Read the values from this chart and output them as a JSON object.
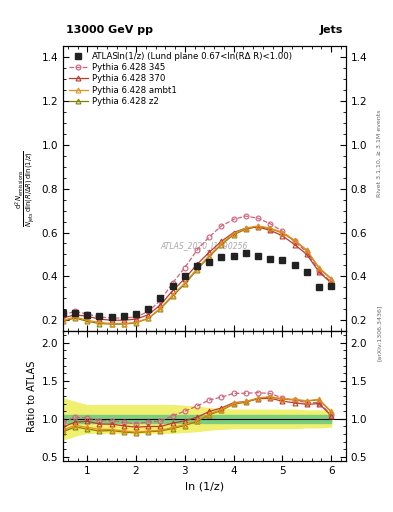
{
  "title_top": "13000 GeV pp",
  "title_right": "Jets",
  "annotation": "ln(1/z) (Lund plane 0.67<ln(RΔ R)<1.00)",
  "watermark": "ATLAS_2020_I1790256",
  "right_label": "Rivet 3.1.10, ≥ 3.1M events",
  "arxiv_label": "[arXiv:1306.3436]",
  "xlabel": "ln (1/z)",
  "ylabel_line1": "d² N",
  "ylabel": "Ratio to ATLAS",
  "x_data": [
    0.5,
    0.75,
    1.0,
    1.25,
    1.5,
    1.75,
    2.0,
    2.25,
    2.5,
    2.75,
    3.0,
    3.25,
    3.5,
    3.75,
    4.0,
    4.25,
    4.5,
    4.75,
    5.0,
    5.25,
    5.5,
    5.75,
    6.0
  ],
  "atlas_y": [
    0.235,
    0.235,
    0.225,
    0.22,
    0.215,
    0.22,
    0.23,
    0.25,
    0.3,
    0.355,
    0.4,
    0.445,
    0.465,
    0.49,
    0.495,
    0.505,
    0.495,
    0.48,
    0.475,
    0.45,
    0.42,
    0.35,
    0.355
  ],
  "p345_y": [
    0.225,
    0.24,
    0.228,
    0.215,
    0.21,
    0.21,
    0.215,
    0.24,
    0.29,
    0.37,
    0.44,
    0.52,
    0.58,
    0.63,
    0.66,
    0.675,
    0.665,
    0.64,
    0.605,
    0.56,
    0.51,
    0.425,
    0.375
  ],
  "p370_y": [
    0.21,
    0.225,
    0.218,
    0.205,
    0.2,
    0.2,
    0.205,
    0.225,
    0.27,
    0.335,
    0.39,
    0.455,
    0.51,
    0.56,
    0.6,
    0.62,
    0.625,
    0.61,
    0.585,
    0.545,
    0.5,
    0.42,
    0.37
  ],
  "pambt_y": [
    0.2,
    0.215,
    0.2,
    0.19,
    0.185,
    0.185,
    0.19,
    0.21,
    0.255,
    0.315,
    0.37,
    0.435,
    0.495,
    0.55,
    0.595,
    0.62,
    0.63,
    0.62,
    0.6,
    0.565,
    0.52,
    0.44,
    0.39
  ],
  "pz2_y": [
    0.195,
    0.21,
    0.195,
    0.185,
    0.182,
    0.182,
    0.188,
    0.208,
    0.252,
    0.31,
    0.365,
    0.43,
    0.49,
    0.545,
    0.59,
    0.615,
    0.628,
    0.618,
    0.598,
    0.562,
    0.518,
    0.438,
    0.388
  ],
  "ratio_p345": [
    0.957,
    1.021,
    1.013,
    0.977,
    0.977,
    0.955,
    0.935,
    0.96,
    0.967,
    1.042,
    1.1,
    1.169,
    1.247,
    1.286,
    1.333,
    1.337,
    1.343,
    1.333,
    1.274,
    1.244,
    1.214,
    1.214,
    1.056
  ],
  "ratio_p370": [
    0.894,
    0.957,
    0.969,
    0.932,
    0.93,
    0.909,
    0.891,
    0.9,
    0.9,
    0.944,
    0.975,
    1.022,
    1.097,
    1.143,
    1.212,
    1.228,
    1.263,
    1.271,
    1.232,
    1.211,
    1.19,
    1.2,
    1.042
  ],
  "ratio_pambt": [
    0.851,
    0.915,
    0.889,
    0.864,
    0.86,
    0.841,
    0.826,
    0.84,
    0.85,
    0.887,
    0.925,
    0.978,
    1.065,
    1.122,
    1.202,
    1.228,
    1.273,
    1.292,
    1.263,
    1.256,
    1.238,
    1.257,
    1.098
  ],
  "ratio_pz2": [
    0.83,
    0.894,
    0.867,
    0.841,
    0.847,
    0.827,
    0.817,
    0.832,
    0.84,
    0.873,
    0.913,
    0.967,
    1.054,
    1.112,
    1.192,
    1.218,
    1.268,
    1.288,
    1.258,
    1.249,
    1.233,
    1.251,
    1.092
  ],
  "green_band_lo": [
    0.95,
    0.95,
    0.95,
    0.95,
    0.95,
    0.95,
    0.95,
    0.95,
    0.95,
    0.95,
    0.95,
    0.95,
    0.95,
    0.95,
    0.95,
    0.95,
    0.95,
    0.95,
    0.95,
    0.95,
    0.95,
    0.95,
    0.95
  ],
  "green_band_hi": [
    1.05,
    1.05,
    1.05,
    1.05,
    1.05,
    1.05,
    1.05,
    1.05,
    1.05,
    1.05,
    1.05,
    1.05,
    1.05,
    1.05,
    1.05,
    1.05,
    1.05,
    1.05,
    1.05,
    1.05,
    1.05,
    1.05,
    1.05
  ],
  "yellow_band_lo": [
    0.73,
    0.78,
    0.82,
    0.82,
    0.82,
    0.82,
    0.82,
    0.82,
    0.82,
    0.82,
    0.83,
    0.84,
    0.86,
    0.87,
    0.88,
    0.88,
    0.88,
    0.88,
    0.88,
    0.88,
    0.89,
    0.89,
    0.9
  ],
  "yellow_band_hi": [
    1.27,
    1.22,
    1.18,
    1.18,
    1.18,
    1.18,
    1.18,
    1.18,
    1.18,
    1.18,
    1.17,
    1.16,
    1.14,
    1.13,
    1.12,
    1.12,
    1.12,
    1.12,
    1.12,
    1.12,
    1.11,
    1.11,
    1.1
  ],
  "color_p345": "#d4607a",
  "color_p370": "#c0392b",
  "color_pambt": "#e09020",
  "color_pz2": "#808000",
  "color_atlas": "#222222",
  "color_green": "#7CCD7C",
  "color_yellow": "#F0F070",
  "xlim": [
    0.5,
    6.3
  ],
  "ylim_main": [
    0.15,
    1.45
  ],
  "ylim_ratio": [
    0.45,
    2.15
  ],
  "yticks_main": [
    0.2,
    0.4,
    0.6,
    0.8,
    1.0,
    1.2,
    1.4
  ],
  "yticks_ratio": [
    0.5,
    1.0,
    1.5,
    2.0
  ],
  "xticks": [
    1,
    2,
    3,
    4,
    5,
    6
  ]
}
